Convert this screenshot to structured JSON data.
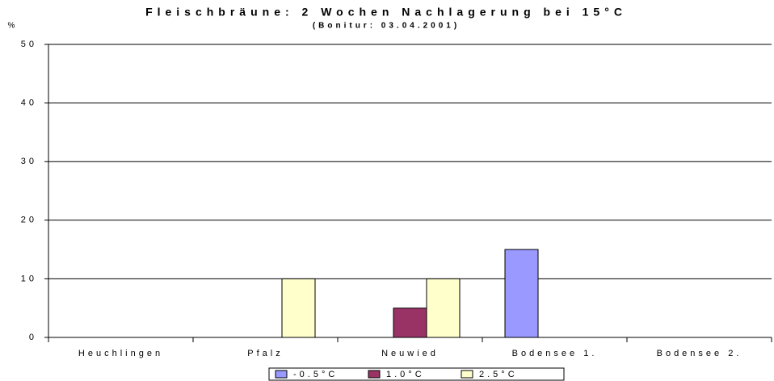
{
  "chart_data": {
    "type": "bar",
    "title": "Fleischbräune: 2 Wochen Nachlagerung bei 15°C",
    "subtitle": "(Bonitur: 03.04.2001)",
    "y_label": "%",
    "categories": [
      "Heuchlingen",
      "Pfalz",
      "Neuwied",
      "Bodensee 1.",
      "Bodensee 2."
    ],
    "series": [
      {
        "name": "-0.5°C",
        "color": "#9999ff",
        "values": [
          0,
          0,
          0,
          15,
          0
        ]
      },
      {
        "name": "1.0°C",
        "color": "#993366",
        "values": [
          0,
          0,
          5,
          0,
          0
        ]
      },
      {
        "name": "2.5°C",
        "color": "#ffffcc",
        "values": [
          0,
          10,
          10,
          0,
          0
        ]
      }
    ],
    "ylim": [
      0,
      50
    ],
    "yticks": [
      0,
      10,
      20,
      30,
      40,
      50
    ],
    "grid": true,
    "legend": "bottom"
  }
}
